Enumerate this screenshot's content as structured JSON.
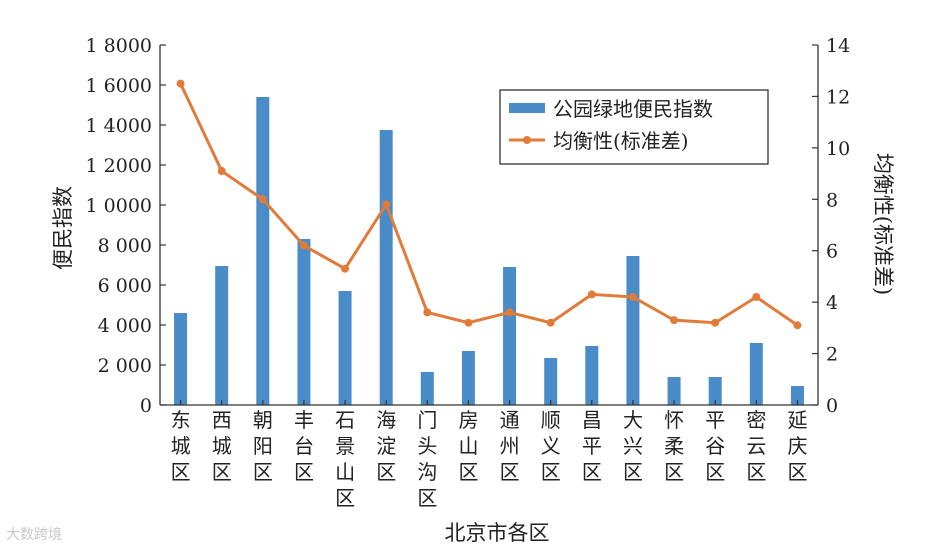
{
  "watermark": "大数跨境",
  "chart_data": {
    "type": "bar+line",
    "xlabel": "北京市各区",
    "ylabel_left": "便民指数",
    "ylabel_right": "均衡性(标准差)",
    "categories": [
      "东城区",
      "西城区",
      "朝阳区",
      "丰台区",
      "石景山区",
      "海淀区",
      "门头沟区",
      "房山区",
      "通州区",
      "顺义区",
      "昌平区",
      "大兴区",
      "怀柔区",
      "平谷区",
      "密云区",
      "延庆区"
    ],
    "y_left_ticks": [
      "0",
      "2 000",
      "4 000",
      "6 000",
      "8 000",
      "1 0000",
      "1 2000",
      "1 4000",
      "1 6000",
      "1 8000"
    ],
    "y_left_range": [
      0,
      18000
    ],
    "y_right_ticks": [
      "0",
      "2",
      "4",
      "6",
      "8",
      "10",
      "12",
      "14"
    ],
    "y_right_range": [
      0,
      14
    ],
    "series": [
      {
        "name": "公园绿地便民指数",
        "type": "bar",
        "axis": "left",
        "color": "#4a8cc7",
        "values": [
          4600,
          6950,
          15400,
          8300,
          5700,
          13750,
          1650,
          2700,
          6900,
          2350,
          2950,
          7450,
          1400,
          1400,
          3100,
          950
        ]
      },
      {
        "name": "均衡性(标准差)",
        "type": "line",
        "axis": "right",
        "color": "#e07b39",
        "values": [
          12.5,
          9.1,
          8.0,
          6.2,
          5.3,
          7.8,
          3.6,
          3.2,
          3.6,
          3.2,
          4.3,
          4.2,
          3.3,
          3.2,
          4.2,
          3.1
        ]
      }
    ],
    "legend_position": "top-right",
    "grid": false
  }
}
